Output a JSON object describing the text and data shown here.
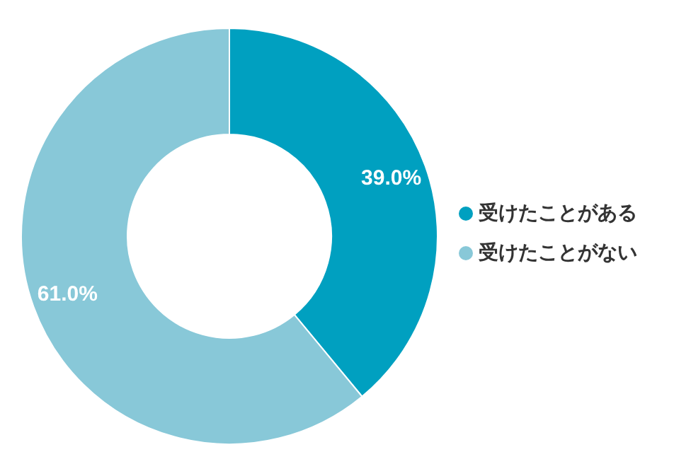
{
  "chart_data": {
    "type": "donut",
    "categories": [
      "受けたことがある",
      "受けたことがない"
    ],
    "values": [
      39.0,
      61.0
    ],
    "value_labels": [
      "39.0%",
      "61.0%"
    ],
    "colors": [
      "#00a0c0",
      "#88c8d8"
    ],
    "legend": "right"
  }
}
